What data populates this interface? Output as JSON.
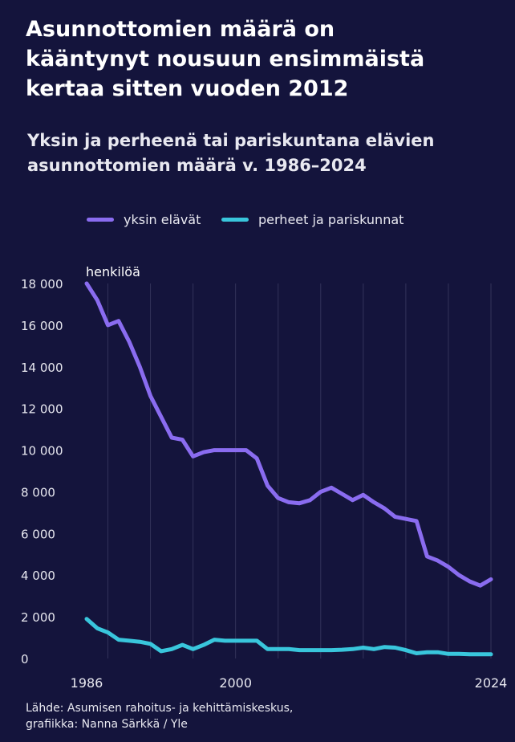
{
  "title_lines": [
    "Asunnottomien määrä on",
    "kääntynyt nousuun ensimmäistä",
    "kertaa sitten vuoden 2012"
  ],
  "subtitle_lines": [
    "Yksin ja perheenä tai pariskuntana elävien",
    "asunnottomien määrä v. 1986–2024"
  ],
  "legend": [
    {
      "label": "yksin elävät",
      "color": "#8a6cf0"
    },
    {
      "label": "perheet ja pariskunnat",
      "color": "#39c6dc"
    }
  ],
  "source_lines": [
    "Lähde: Asumisen rahoitus- ja kehittämiskeskus,",
    "grafiikka: Nanna Särkkä / Yle"
  ],
  "chart_data": {
    "type": "line",
    "unit_label": "henkilöä",
    "xlim": [
      1986,
      2024
    ],
    "ylim": [
      0,
      18000
    ],
    "x_ticks": [
      {
        "value": 1986,
        "label": "1986"
      },
      {
        "value": 2000,
        "label": "2000"
      },
      {
        "value": 2024,
        "label": "2024"
      }
    ],
    "y_ticks": [
      {
        "value": 0,
        "label": "0"
      },
      {
        "value": 2000,
        "label": "2 000"
      },
      {
        "value": 4000,
        "label": "4 000"
      },
      {
        "value": 6000,
        "label": "6 000"
      },
      {
        "value": 8000,
        "label": "8 000"
      },
      {
        "value": 10000,
        "label": "10 000"
      },
      {
        "value": 12000,
        "label": "12 000"
      },
      {
        "value": 14000,
        "label": "14 000"
      },
      {
        "value": 16000,
        "label": "16 000"
      },
      {
        "value": 18000,
        "label": "18 000"
      }
    ],
    "grid": "vertical",
    "x": [
      1986,
      1987,
      1988,
      1989,
      1990,
      1991,
      1992,
      1993,
      1994,
      1995,
      1996,
      1997,
      1998,
      1999,
      2000,
      2001,
      2002,
      2003,
      2004,
      2005,
      2006,
      2007,
      2008,
      2009,
      2010,
      2011,
      2012,
      2013,
      2014,
      2015,
      2016,
      2017,
      2018,
      2019,
      2020,
      2021,
      2022,
      2023,
      2024
    ],
    "series": [
      {
        "name": "yksin elävät",
        "color": "#8a6cf0",
        "values": [
          18000,
          17200,
          16000,
          16200,
          15200,
          14000,
          12600,
          11600,
          10600,
          10500,
          9700,
          9900,
          10000,
          10000,
          10000,
          10000,
          9600,
          8300,
          7700,
          7500,
          7450,
          7600,
          8000,
          8200,
          7900,
          7600,
          7850,
          7500,
          7200,
          6800,
          6700,
          6600,
          4900,
          4700,
          4400,
          4000,
          3700,
          3500,
          3800
        ]
      },
      {
        "name": "perheet ja pariskunnat",
        "color": "#39c6dc",
        "values": [
          1900,
          1450,
          1250,
          900,
          850,
          800,
          700,
          350,
          450,
          650,
          450,
          650,
          900,
          850,
          850,
          850,
          850,
          450,
          450,
          450,
          400,
          400,
          400,
          400,
          420,
          450,
          520,
          450,
          550,
          520,
          400,
          250,
          300,
          300,
          220,
          220,
          200,
          200,
          200
        ]
      }
    ]
  }
}
